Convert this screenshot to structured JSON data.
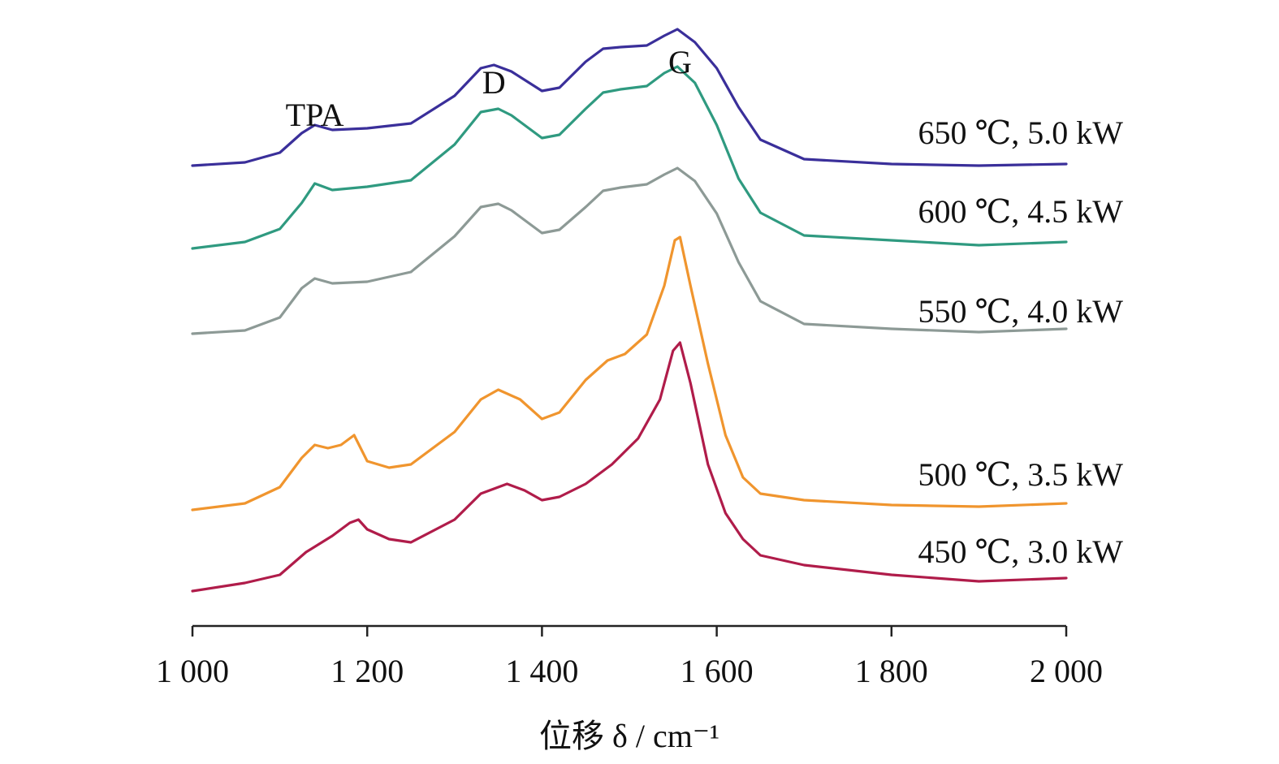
{
  "chart_data": {
    "type": "line",
    "xlabel": "位移 δ / cm⁻¹",
    "xlim": [
      1000,
      2000
    ],
    "x_ticks": [
      1000,
      1200,
      1400,
      1600,
      1800,
      2000
    ],
    "x_tick_labels": [
      "1 000",
      "1 200",
      "1 400",
      "1 600",
      "1 800",
      "2 000"
    ],
    "y_axis_shown": false,
    "layout": "vertically offset spectra",
    "peak_labels": [
      {
        "text": "TPA",
        "x": 1140
      },
      {
        "text": "D",
        "x": 1345
      },
      {
        "text": "G",
        "x": 1558
      }
    ],
    "series": [
      {
        "name": "650 ℃, 5.0 kW",
        "color": "#3a2f9a",
        "x": [
          1000,
          1060,
          1100,
          1125,
          1140,
          1160,
          1200,
          1250,
          1300,
          1330,
          1345,
          1365,
          1400,
          1420,
          1450,
          1470,
          1490,
          1520,
          1540,
          1555,
          1575,
          1600,
          1625,
          1650,
          1700,
          1800,
          1900,
          2000
        ],
        "y": [
          0.02,
          0.04,
          0.1,
          0.22,
          0.27,
          0.24,
          0.25,
          0.28,
          0.45,
          0.62,
          0.64,
          0.6,
          0.48,
          0.5,
          0.66,
          0.74,
          0.75,
          0.76,
          0.82,
          0.86,
          0.78,
          0.62,
          0.38,
          0.18,
          0.06,
          0.03,
          0.02,
          0.03
        ]
      },
      {
        "name": "600 ℃, 4.5 kW",
        "color": "#2f9a80",
        "x": [
          1000,
          1060,
          1100,
          1125,
          1140,
          1160,
          1200,
          1250,
          1300,
          1330,
          1350,
          1365,
          1400,
          1420,
          1450,
          1470,
          1490,
          1520,
          1540,
          1555,
          1575,
          1600,
          1625,
          1650,
          1700,
          1800,
          1900,
          2000
        ],
        "y": [
          0.02,
          0.06,
          0.14,
          0.3,
          0.42,
          0.38,
          0.4,
          0.44,
          0.66,
          0.86,
          0.88,
          0.84,
          0.7,
          0.72,
          0.88,
          0.98,
          1.0,
          1.02,
          1.1,
          1.14,
          1.04,
          0.78,
          0.45,
          0.24,
          0.1,
          0.07,
          0.04,
          0.06
        ]
      },
      {
        "name": "550 ℃, 4.0 kW",
        "color": "#8d9a96",
        "x": [
          1000,
          1060,
          1100,
          1125,
          1140,
          1160,
          1200,
          1250,
          1300,
          1330,
          1350,
          1365,
          1400,
          1420,
          1450,
          1470,
          1490,
          1520,
          1540,
          1555,
          1575,
          1600,
          1625,
          1650,
          1700,
          1800,
          1900,
          2000
        ],
        "y": [
          0.02,
          0.04,
          0.12,
          0.3,
          0.36,
          0.33,
          0.34,
          0.4,
          0.62,
          0.8,
          0.82,
          0.78,
          0.64,
          0.66,
          0.8,
          0.9,
          0.92,
          0.94,
          1.0,
          1.04,
          0.96,
          0.76,
          0.46,
          0.22,
          0.08,
          0.05,
          0.03,
          0.05
        ]
      },
      {
        "name": "500 ℃, 3.5 kW",
        "color": "#f0952e",
        "x": [
          1000,
          1060,
          1100,
          1125,
          1140,
          1155,
          1170,
          1185,
          1200,
          1225,
          1250,
          1300,
          1330,
          1350,
          1375,
          1400,
          1420,
          1450,
          1475,
          1495,
          1520,
          1540,
          1552,
          1558,
          1570,
          1590,
          1610,
          1630,
          1650,
          1700,
          1800,
          1900,
          2000
        ],
        "y": [
          0.02,
          0.06,
          0.16,
          0.34,
          0.42,
          0.4,
          0.42,
          0.48,
          0.32,
          0.28,
          0.3,
          0.5,
          0.7,
          0.76,
          0.7,
          0.58,
          0.62,
          0.82,
          0.94,
          0.98,
          1.1,
          1.4,
          1.68,
          1.7,
          1.4,
          0.92,
          0.48,
          0.22,
          0.12,
          0.08,
          0.05,
          0.04,
          0.06
        ]
      },
      {
        "name": "450 ℃, 3.0 kW",
        "color": "#b01c4a",
        "x": [
          1000,
          1060,
          1100,
          1130,
          1160,
          1180,
          1190,
          1200,
          1225,
          1250,
          1300,
          1330,
          1360,
          1380,
          1400,
          1420,
          1450,
          1480,
          1510,
          1535,
          1550,
          1558,
          1570,
          1590,
          1610,
          1630,
          1650,
          1700,
          1800,
          1900,
          2000
        ],
        "y": [
          0.02,
          0.07,
          0.12,
          0.26,
          0.36,
          0.44,
          0.46,
          0.4,
          0.34,
          0.32,
          0.46,
          0.62,
          0.68,
          0.64,
          0.58,
          0.6,
          0.68,
          0.8,
          0.96,
          1.2,
          1.5,
          1.55,
          1.3,
          0.8,
          0.5,
          0.34,
          0.24,
          0.18,
          0.12,
          0.08,
          0.1
        ]
      }
    ]
  }
}
